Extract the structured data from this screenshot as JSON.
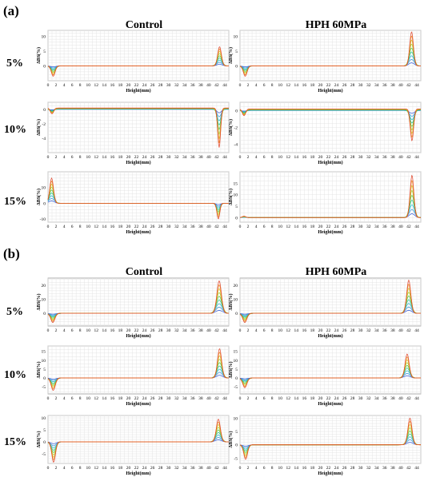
{
  "figure": {
    "section_labels": [
      "(a)",
      "(b)"
    ],
    "column_titles": [
      "Control",
      "HPH 60MPa"
    ],
    "row_labels": [
      "5%",
      "10%",
      "15%"
    ]
  },
  "chart_data": [
    {
      "type": "line",
      "section": "(a)",
      "row": "5%",
      "column": "Control",
      "xlabel": "Height(mm)",
      "ylabel": "ΔBS(%)",
      "xlim": [
        0,
        45
      ],
      "ylim": [
        -5,
        12
      ],
      "yticks": [
        0,
        5,
        10
      ],
      "xticks": [
        0,
        2,
        4,
        6,
        8,
        10,
        12,
        14,
        16,
        18,
        20,
        22,
        24,
        26,
        28,
        30,
        32,
        34,
        36,
        38,
        40,
        42,
        44
      ],
      "grid": true,
      "features": [
        {
          "x": 1.3,
          "amp": -3.5,
          "w": 0.45
        },
        {
          "x": 42.7,
          "amp": 6.5,
          "w": 0.45
        }
      ]
    },
    {
      "type": "line",
      "section": "(a)",
      "row": "5%",
      "column": "HPH 60MPa",
      "xlabel": "Height(mm)",
      "ylabel": "ΔBS(%)",
      "xlim": [
        0,
        45
      ],
      "ylim": [
        -5,
        12
      ],
      "yticks": [
        0,
        5,
        10
      ],
      "xticks": [
        0,
        2,
        4,
        6,
        8,
        10,
        12,
        14,
        16,
        18,
        20,
        22,
        24,
        26,
        28,
        30,
        32,
        34,
        36,
        38,
        40,
        42,
        44
      ],
      "grid": true,
      "features": [
        {
          "x": 1.3,
          "amp": -3.5,
          "w": 0.45
        },
        {
          "x": 42.7,
          "amp": 11.5,
          "w": 0.45
        }
      ]
    },
    {
      "type": "line",
      "section": "(a)",
      "row": "10%",
      "column": "Control",
      "xlabel": "Height(mm)",
      "ylabel": "ΔBS(%)",
      "xlim": [
        0,
        45
      ],
      "ylim": [
        -6,
        1
      ],
      "yticks": [
        -4,
        -2,
        0
      ],
      "xticks": [
        0,
        2,
        4,
        6,
        8,
        10,
        12,
        14,
        16,
        18,
        20,
        22,
        24,
        26,
        28,
        30,
        32,
        34,
        36,
        38,
        40,
        42,
        44
      ],
      "grid": true,
      "baseline": 0.2,
      "features": [
        {
          "x": 1.0,
          "amp": -0.8,
          "w": 0.4
        },
        {
          "x": 42.6,
          "amp": -5.5,
          "w": 0.35
        }
      ]
    },
    {
      "type": "line",
      "section": "(a)",
      "row": "10%",
      "column": "HPH 60MPa",
      "xlabel": "Height(mm)",
      "ylabel": "ΔBS(%)",
      "xlim": [
        0,
        45
      ],
      "ylim": [
        -5,
        1
      ],
      "yticks": [
        -4,
        -2,
        0
      ],
      "xticks": [
        0,
        2,
        4,
        6,
        8,
        10,
        12,
        14,
        16,
        18,
        20,
        22,
        24,
        26,
        28,
        30,
        32,
        34,
        36,
        38,
        40,
        42,
        44
      ],
      "grid": true,
      "baseline": 0.2,
      "features": [
        {
          "x": 1.0,
          "amp": -0.8,
          "w": 0.4
        },
        {
          "x": 42.8,
          "amp": -3.8,
          "w": 0.4
        }
      ]
    },
    {
      "type": "line",
      "section": "(a)",
      "row": "15%",
      "column": "Control",
      "xlabel": "Height(mm)",
      "ylabel": "ΔBS(%)",
      "xlim": [
        0,
        45
      ],
      "ylim": [
        -12,
        20
      ],
      "yticks": [
        -10,
        0,
        10
      ],
      "xticks": [
        0,
        2,
        4,
        6,
        8,
        10,
        12,
        14,
        16,
        18,
        20,
        22,
        24,
        26,
        28,
        30,
        32,
        34,
        36,
        38,
        40,
        42,
        44
      ],
      "grid": true,
      "features": [
        {
          "x": 0.9,
          "amp": 16,
          "w": 0.45
        },
        {
          "x": 42.4,
          "amp": -10,
          "w": 0.35
        }
      ]
    },
    {
      "type": "line",
      "section": "(a)",
      "row": "15%",
      "column": "HPH 60MPa",
      "xlabel": "Height(mm)",
      "ylabel": "ΔBS(%)",
      "xlim": [
        0,
        45
      ],
      "ylim": [
        -2,
        20
      ],
      "yticks": [
        0,
        5,
        10,
        15
      ],
      "xticks": [
        0,
        2,
        4,
        6,
        8,
        10,
        12,
        14,
        16,
        18,
        20,
        22,
        24,
        26,
        28,
        30,
        32,
        34,
        36,
        38,
        40,
        42,
        44
      ],
      "grid": true,
      "features": [
        {
          "x": 1.0,
          "amp": 0.6,
          "w": 0.4
        },
        {
          "x": 42.8,
          "amp": 18.5,
          "w": 0.45
        }
      ]
    },
    {
      "type": "line",
      "section": "(b)",
      "row": "5%",
      "column": "Control",
      "xlabel": "Height(mm)",
      "ylabel": "ΔBS(%)",
      "xlim": [
        0,
        45
      ],
      "ylim": [
        -9,
        25
      ],
      "yticks": [
        0,
        10,
        20
      ],
      "xticks": [
        0,
        2,
        4,
        6,
        8,
        10,
        12,
        14,
        16,
        18,
        20,
        22,
        24,
        26,
        28,
        30,
        32,
        34,
        36,
        38,
        40,
        42,
        44
      ],
      "grid": true,
      "features": [
        {
          "x": 1.2,
          "amp": -6.5,
          "w": 0.5
        },
        {
          "x": 42.6,
          "amp": 23,
          "w": 0.55
        }
      ]
    },
    {
      "type": "line",
      "section": "(b)",
      "row": "5%",
      "column": "HPH 60MPa",
      "xlabel": "Height(mm)",
      "ylabel": "ΔBS(%)",
      "xlim": [
        0,
        45
      ],
      "ylim": [
        -9,
        25
      ],
      "yticks": [
        0,
        10,
        20
      ],
      "xticks": [
        0,
        2,
        4,
        6,
        8,
        10,
        12,
        14,
        16,
        18,
        20,
        22,
        24,
        26,
        28,
        30,
        32,
        34,
        36,
        38,
        40,
        42,
        44
      ],
      "grid": true,
      "features": [
        {
          "x": 1.2,
          "amp": -6.5,
          "w": 0.5
        },
        {
          "x": 42.0,
          "amp": 23.5,
          "w": 0.5
        }
      ]
    },
    {
      "type": "line",
      "section": "(b)",
      "row": "10%",
      "column": "Control",
      "xlabel": "Height(mm)",
      "ylabel": "ΔBS(%)",
      "xlim": [
        0,
        45
      ],
      "ylim": [
        -9,
        18
      ],
      "yticks": [
        -5,
        0,
        5,
        10,
        15
      ],
      "xticks": [
        0,
        2,
        4,
        6,
        8,
        10,
        12,
        14,
        16,
        18,
        20,
        22,
        24,
        26,
        28,
        30,
        32,
        34,
        36,
        38,
        40,
        42,
        44
      ],
      "grid": true,
      "features": [
        {
          "x": 1.3,
          "amp": -7,
          "w": 0.5
        },
        {
          "x": 42.7,
          "amp": 16.5,
          "w": 0.5
        }
      ]
    },
    {
      "type": "line",
      "section": "(b)",
      "row": "10%",
      "column": "HPH 60MPa",
      "xlabel": "Height(mm)",
      "ylabel": "ΔBS(%)",
      "xlim": [
        0,
        45
      ],
      "ylim": [
        -9,
        18
      ],
      "yticks": [
        -5,
        0,
        5,
        10,
        15
      ],
      "xticks": [
        0,
        2,
        4,
        6,
        8,
        10,
        12,
        14,
        16,
        18,
        20,
        22,
        24,
        26,
        28,
        30,
        32,
        34,
        36,
        38,
        40,
        42,
        44
      ],
      "grid": true,
      "features": [
        {
          "x": 1.2,
          "amp": -5.5,
          "w": 0.5
        },
        {
          "x": 41.6,
          "amp": 13.5,
          "w": 0.5
        }
      ]
    },
    {
      "type": "line",
      "section": "(b)",
      "row": "15%",
      "column": "Control",
      "xlabel": "Height(mm)",
      "ylabel": "ΔBS(%)",
      "xlim": [
        0,
        45
      ],
      "ylim": [
        -9,
        11
      ],
      "yticks": [
        -5,
        0,
        5,
        10
      ],
      "xticks": [
        0,
        2,
        4,
        6,
        8,
        10,
        12,
        14,
        16,
        18,
        20,
        22,
        24,
        26,
        28,
        30,
        32,
        34,
        36,
        38,
        40,
        42,
        44
      ],
      "grid": true,
      "features": [
        {
          "x": 1.4,
          "amp": -8.5,
          "w": 0.45
        },
        {
          "x": 42.4,
          "amp": 9.5,
          "w": 0.5
        }
      ]
    },
    {
      "type": "line",
      "section": "(b)",
      "row": "15%",
      "column": "HPH 60MPa",
      "xlabel": "Height(mm)",
      "ylabel": "ΔBS(%)",
      "xlim": [
        0,
        45
      ],
      "ylim": [
        -7,
        11
      ],
      "yticks": [
        -5,
        0,
        5,
        10
      ],
      "xticks": [
        0,
        2,
        4,
        6,
        8,
        10,
        12,
        14,
        16,
        18,
        20,
        22,
        24,
        26,
        28,
        30,
        32,
        34,
        36,
        38,
        40,
        42,
        44
      ],
      "grid": true,
      "features": [
        {
          "x": 1.4,
          "amp": -5.5,
          "w": 0.45
        },
        {
          "x": 42.3,
          "amp": 10,
          "w": 0.5
        }
      ]
    }
  ]
}
